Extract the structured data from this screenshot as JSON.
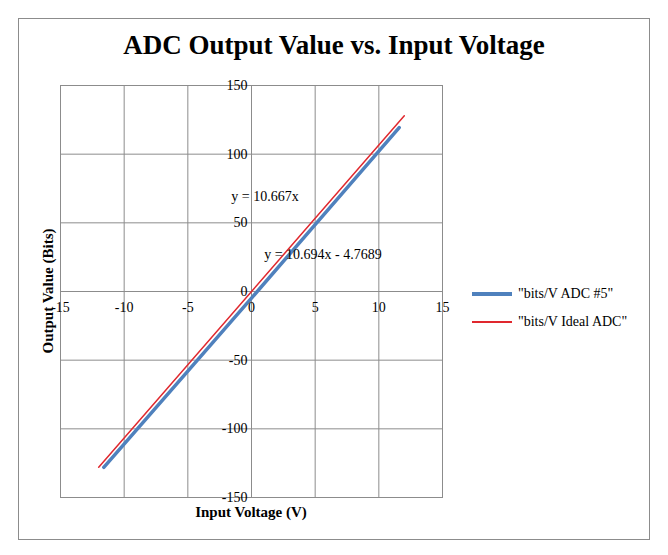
{
  "chart_data": {
    "type": "line",
    "title": "ADC Output Value vs. Input Voltage",
    "x_label": "Input Voltage (V)",
    "y_label": "Output Value (Bits)",
    "xlim": [
      -15,
      15
    ],
    "xticks": [
      -15,
      -10,
      -5,
      0,
      5,
      10,
      15
    ],
    "ylim": [
      -150,
      150
    ],
    "yticks": [
      -150,
      -100,
      -50,
      0,
      50,
      100,
      150
    ],
    "grid": true,
    "legend": "right",
    "annotations": [
      "y = 10.667x",
      "y = 10.694x - 4.7689"
    ],
    "series": [
      {
        "name": "\"bits/V ADC #5\"",
        "color": "#4f81bd",
        "x": [
          -11.6,
          -5,
          0,
          5,
          11.6
        ],
        "values": [
          -128,
          -58,
          -4.8,
          48.7,
          119.3
        ]
      },
      {
        "name": "\"bits/V Ideal ADC\"",
        "color": "#e0282e",
        "x": [
          -12,
          12
        ],
        "values": [
          -128,
          128
        ]
      }
    ]
  }
}
